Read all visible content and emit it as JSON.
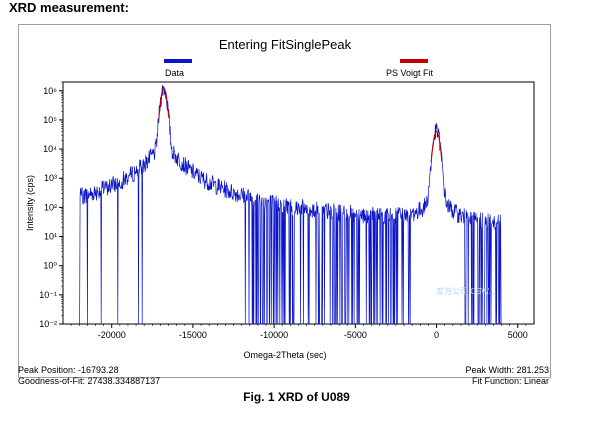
{
  "heading": "XRD measurement:",
  "chart_data": {
    "type": "line",
    "title": "Entering FitSinglePeak",
    "xlabel": "Omega-2Theta (sec)",
    "ylabel": "Intensity (cps)",
    "xlim": [
      -23000,
      6000
    ],
    "ylim": [
      0.01,
      2000000
    ],
    "yscale": "log",
    "x_ticks": [
      "-20000",
      "-15000",
      "-10000",
      "-5000",
      "0",
      "5000"
    ],
    "y_ticks": [
      "10⁻²",
      "10⁻¹",
      "10⁰",
      "10¹",
      "10²",
      "10³",
      "10⁴",
      "10⁵",
      "10⁶"
    ],
    "legend_position": "top",
    "series": [
      {
        "name": "Data",
        "color": "#0a14c8",
        "peaks": [
          {
            "x": -16793,
            "peak": 1200000,
            "half_width": 140,
            "tail_amp": 180,
            "tail_gamma": 700
          },
          {
            "x": 0,
            "peak": 40000,
            "half_width": 150,
            "tail_amp": 60,
            "tail_gamma": 350
          }
        ],
        "x_range": [
          -22000,
          4000
        ],
        "background": 15,
        "minimum": 0.01
      },
      {
        "name": "PS Voigt Fit",
        "color": "#c00000",
        "peaks": [
          {
            "x": -16793,
            "peak": 1200000,
            "half_width": 140
          },
          {
            "x": 0,
            "peak": 40000,
            "half_width": 150
          }
        ]
      }
    ]
  },
  "stats": {
    "peak_position": "Peak Position: -16793.28",
    "goodness_of_fit": "Goodness-of-Fit: 27438.334887137",
    "peak_width": "Peak Width: 281.253",
    "fit_function": "Fit Function: Linear"
  },
  "caption": "Fig. 1 XRD of U089",
  "watermark": "度万公司 CSW..."
}
